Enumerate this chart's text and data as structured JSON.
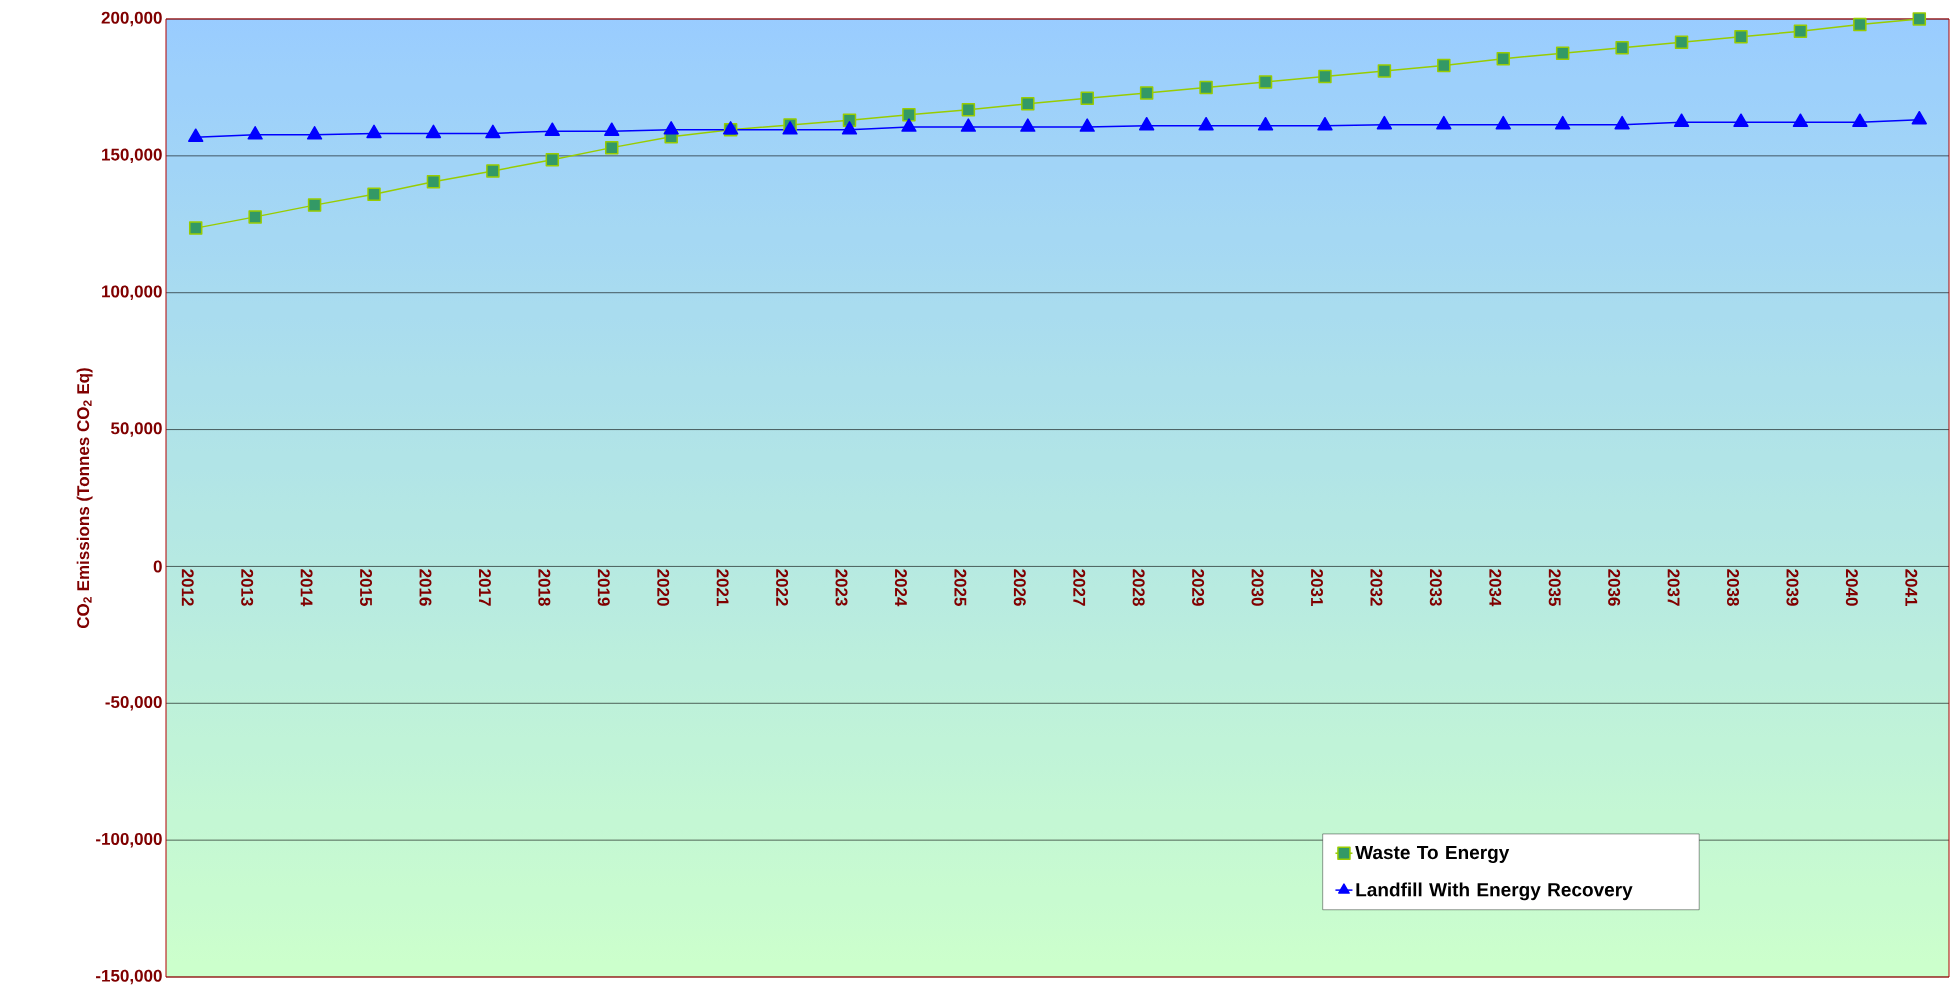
{
  "chart_data": {
    "type": "line",
    "ylabel": "CO$_{2}$ Emissions (Tonnes CO$_{2}$ Eq)",
    "categories": [
      "2012",
      "2013",
      "2014",
      "2015",
      "2016",
      "2017",
      "2018",
      "2019",
      "2020",
      "2021",
      "2022",
      "2023",
      "2024",
      "2025",
      "2026",
      "2027",
      "2028",
      "2029",
      "2030",
      "2031",
      "2032",
      "2033",
      "2034",
      "2035",
      "2036",
      "2037",
      "2038",
      "2039",
      "2040",
      "2041"
    ],
    "series": [
      {
        "name": "Waste To Energy",
        "color": "#99cc00",
        "marker": "square",
        "values": [
          123600,
          127700,
          132000,
          136000,
          140500,
          144500,
          148600,
          153000,
          157000,
          159500,
          161300,
          163000,
          165000,
          166800,
          169000,
          171000,
          173000,
          175000,
          177000,
          179000,
          181000,
          183000,
          185500,
          187500,
          189500,
          191500,
          193500,
          195500,
          198000,
          200000
        ]
      },
      {
        "name": "Landfill With Energy Recovery",
        "color": "#0000ff",
        "marker": "triangle",
        "values": [
          156800,
          157700,
          157700,
          158200,
          158200,
          158200,
          159000,
          159000,
          159500,
          159500,
          159500,
          159500,
          160500,
          160500,
          160500,
          160500,
          161000,
          161000,
          161000,
          161000,
          161400,
          161400,
          161400,
          161400,
          161400,
          162300,
          162300,
          162300,
          162300,
          163200
        ]
      }
    ],
    "ylim": [
      -150000,
      200000
    ],
    "yticks": [
      {
        "value": -150000,
        "label": "-150,000"
      },
      {
        "value": -100000,
        "label": "-100,000"
      },
      {
        "value": -50000,
        "label": "-50,000"
      },
      0,
      {
        "value": 50000,
        "label": "50,000"
      },
      {
        "value": 100000,
        "label": "100,000"
      },
      {
        "value": 150000,
        "label": "150,000"
      },
      {
        "value": 200000,
        "label": "200,000"
      }
    ],
    "grid": "y",
    "legend": "bottom right",
    "line_style": "solid"
  }
}
